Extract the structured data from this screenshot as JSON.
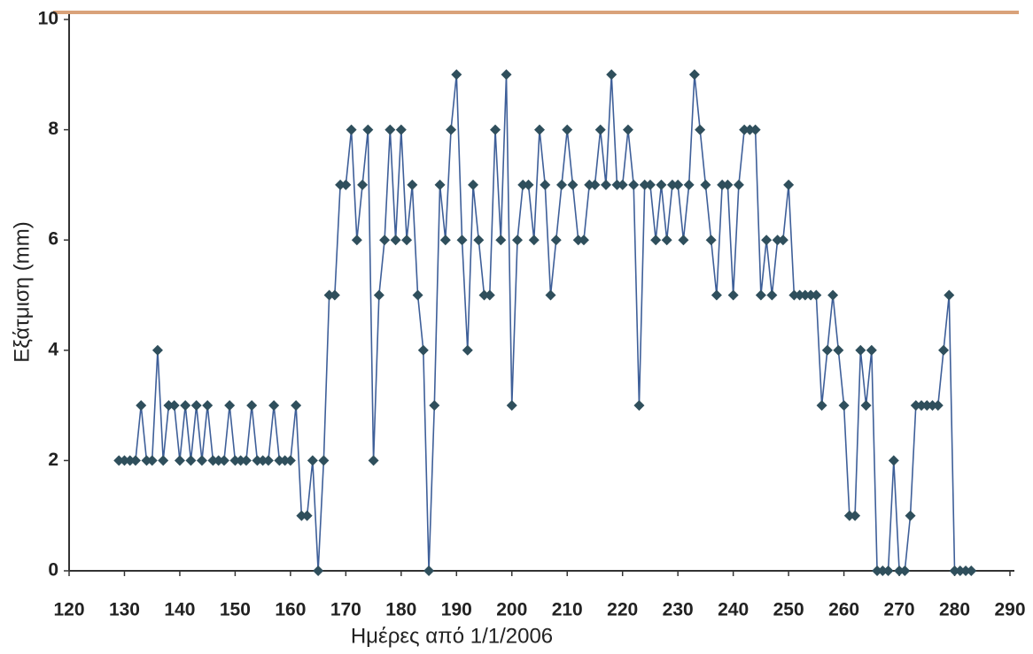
{
  "chart_data": {
    "type": "line",
    "xlabel": "Ημέρες από 1/1/2006",
    "ylabel": "Εξάτμιση (mm)",
    "x": [
      129,
      130,
      131,
      132,
      133,
      134,
      135,
      136,
      137,
      138,
      139,
      140,
      141,
      142,
      143,
      144,
      145,
      146,
      147,
      148,
      149,
      150,
      151,
      152,
      153,
      154,
      155,
      156,
      157,
      158,
      159,
      160,
      161,
      162,
      163,
      164,
      165,
      166,
      167,
      168,
      169,
      170,
      171,
      172,
      173,
      174,
      175,
      176,
      177,
      178,
      179,
      180,
      181,
      182,
      183,
      184,
      185,
      186,
      187,
      188,
      189,
      190,
      191,
      192,
      193,
      194,
      195,
      196,
      197,
      198,
      199,
      200,
      201,
      202,
      203,
      204,
      205,
      206,
      207,
      208,
      209,
      210,
      211,
      212,
      213,
      214,
      215,
      216,
      217,
      218,
      219,
      220,
      221,
      222,
      223,
      224,
      225,
      226,
      227,
      228,
      229,
      230,
      231,
      232,
      233,
      234,
      235,
      236,
      237,
      238,
      239,
      240,
      241,
      242,
      243,
      244,
      245,
      246,
      247,
      248,
      249,
      250,
      251,
      252,
      253,
      254,
      255,
      256,
      257,
      258,
      259,
      260,
      261,
      262,
      263,
      264,
      265,
      266,
      267,
      268,
      269,
      270,
      271,
      272,
      273,
      274,
      275,
      276,
      277,
      278,
      279,
      280,
      281,
      282,
      283
    ],
    "values": [
      2,
      2,
      2,
      2,
      3,
      2,
      2,
      4,
      2,
      3,
      3,
      2,
      3,
      2,
      3,
      2,
      3,
      2,
      2,
      2,
      3,
      2,
      2,
      2,
      3,
      2,
      2,
      2,
      3,
      2,
      2,
      2,
      3,
      1,
      1,
      2,
      0,
      2,
      5,
      5,
      7,
      7,
      8,
      6,
      7,
      8,
      2,
      5,
      6,
      8,
      6,
      8,
      6,
      7,
      5,
      4,
      0,
      3,
      7,
      6,
      8,
      9,
      6,
      4,
      7,
      6,
      5,
      5,
      8,
      6,
      9,
      3,
      6,
      7,
      7,
      6,
      8,
      7,
      5,
      6,
      7,
      8,
      7,
      6,
      6,
      7,
      7,
      8,
      7,
      9,
      7,
      7,
      8,
      7,
      3,
      7,
      7,
      6,
      7,
      6,
      7,
      7,
      6,
      7,
      9,
      8,
      7,
      6,
      5,
      7,
      7,
      5,
      7,
      8,
      8,
      8,
      5,
      6,
      5,
      6,
      6,
      7,
      5,
      5,
      5,
      5,
      5,
      3,
      4,
      5,
      4,
      3,
      1,
      1,
      4,
      3,
      4,
      0,
      0,
      0,
      2,
      0,
      0,
      1,
      3,
      3,
      3,
      3,
      3,
      4,
      5,
      0,
      0,
      0,
      0
    ],
    "color": "#3e5f99",
    "marker_color": "#2f4f5c",
    "xlim": [
      120,
      290
    ],
    "xticks": [
      120,
      130,
      140,
      150,
      160,
      170,
      180,
      190,
      200,
      210,
      220,
      230,
      240,
      250,
      260,
      270,
      280,
      290
    ],
    "ylim": [
      0,
      10
    ],
    "yticks": [
      0,
      2,
      4,
      6,
      8,
      10
    ]
  }
}
